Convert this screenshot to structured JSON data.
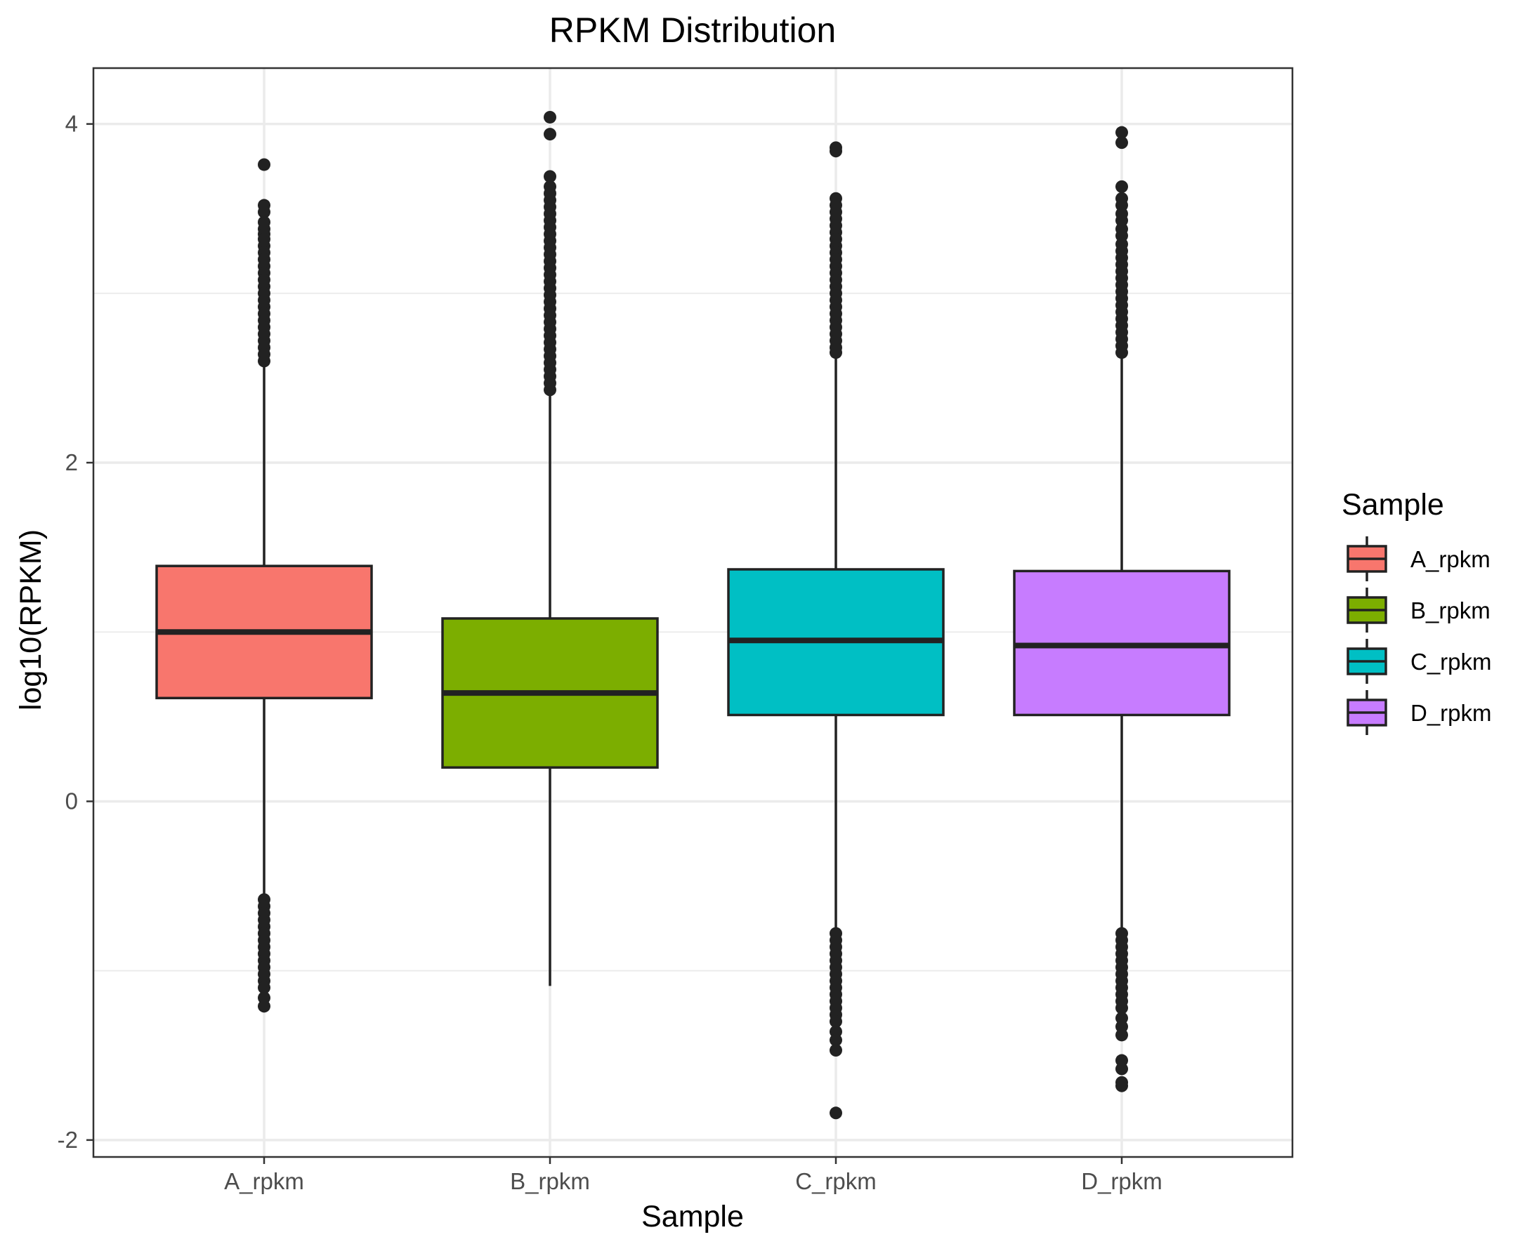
{
  "chart_data": {
    "type": "boxplot",
    "title": "RPKM Distribution",
    "xlabel": "Sample",
    "ylabel": "log10(RPKM)",
    "ylim": [
      -2.1,
      4.33
    ],
    "y_ticks": [
      -2,
      0,
      2,
      4
    ],
    "y_tick_labels": [
      "-2",
      "0",
      "2",
      "4"
    ],
    "y_minor_ticks": [
      -1,
      1,
      3
    ],
    "grid": true,
    "legend": {
      "title": "Sample",
      "position": "right",
      "entries": [
        "A_rpkm",
        "B_rpkm",
        "C_rpkm",
        "D_rpkm"
      ]
    },
    "categories": [
      "A_rpkm",
      "B_rpkm",
      "C_rpkm",
      "D_rpkm"
    ],
    "series": [
      {
        "category": "A_rpkm",
        "color": "#F8766D",
        "q1": 0.61,
        "median": 1.0,
        "q3": 1.39,
        "whisker_low": -0.58,
        "whisker_high": 2.57,
        "outliers": [
          3.76,
          3.52,
          3.48,
          3.42,
          3.38,
          3.35,
          3.32,
          3.28,
          3.24,
          3.2,
          3.16,
          3.12,
          3.08,
          3.04,
          3.0,
          2.96,
          2.92,
          2.88,
          2.84,
          2.8,
          2.76,
          2.72,
          2.68,
          2.64,
          2.6,
          -0.58,
          -0.62,
          -0.66,
          -0.7,
          -0.74,
          -0.78,
          -0.82,
          -0.86,
          -0.9,
          -0.94,
          -0.98,
          -1.02,
          -1.06,
          -1.1,
          -1.16,
          -1.21
        ]
      },
      {
        "category": "B_rpkm",
        "color": "#7CAE00",
        "q1": 0.2,
        "median": 0.64,
        "q3": 1.08,
        "whisker_low": -1.09,
        "whisker_high": 2.42,
        "outliers": [
          4.04,
          3.94,
          3.69,
          3.63,
          3.59,
          3.55,
          3.51,
          3.47,
          3.43,
          3.39,
          3.35,
          3.31,
          3.27,
          3.23,
          3.19,
          3.15,
          3.11,
          3.07,
          3.03,
          2.99,
          2.95,
          2.91,
          2.87,
          2.83,
          2.79,
          2.75,
          2.71,
          2.67,
          2.63,
          2.59,
          2.55,
          2.51,
          2.47,
          2.43
        ]
      },
      {
        "category": "C_rpkm",
        "color": "#00BFC4",
        "q1": 0.51,
        "median": 0.95,
        "q3": 1.37,
        "whisker_low": -0.77,
        "whisker_high": 2.64,
        "outliers": [
          3.86,
          3.84,
          3.56,
          3.52,
          3.48,
          3.44,
          3.4,
          3.36,
          3.32,
          3.28,
          3.24,
          3.2,
          3.16,
          3.12,
          3.08,
          3.04,
          3.0,
          2.96,
          2.92,
          2.88,
          2.84,
          2.8,
          2.76,
          2.72,
          2.68,
          2.65,
          -0.78,
          -0.82,
          -0.86,
          -0.9,
          -0.94,
          -0.98,
          -1.02,
          -1.06,
          -1.1,
          -1.14,
          -1.18,
          -1.22,
          -1.26,
          -1.3,
          -1.36,
          -1.41,
          -1.47,
          -1.84
        ]
      },
      {
        "category": "D_rpkm",
        "color": "#C77CFF",
        "q1": 0.51,
        "median": 0.92,
        "q3": 1.36,
        "whisker_low": -0.77,
        "whisker_high": 2.63,
        "outliers": [
          3.95,
          3.89,
          3.63,
          3.56,
          3.52,
          3.47,
          3.43,
          3.38,
          3.34,
          3.29,
          3.25,
          3.21,
          3.17,
          3.13,
          3.09,
          3.05,
          3.01,
          2.97,
          2.93,
          2.89,
          2.85,
          2.81,
          2.77,
          2.73,
          2.69,
          2.65,
          -0.78,
          -0.82,
          -0.86,
          -0.9,
          -0.94,
          -0.98,
          -1.02,
          -1.06,
          -1.1,
          -1.14,
          -1.18,
          -1.22,
          -1.28,
          -1.33,
          -1.38,
          -1.53,
          -1.58,
          -1.66,
          -1.68
        ]
      }
    ]
  }
}
